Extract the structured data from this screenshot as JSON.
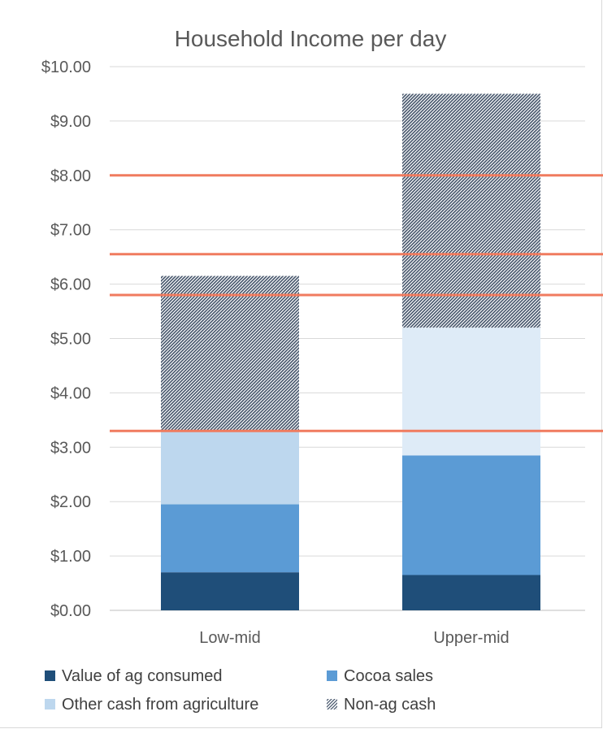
{
  "chart_data": {
    "type": "bar",
    "stacked": true,
    "title": "Household Income per day",
    "categories": [
      "Low-mid",
      "Upper-mid"
    ],
    "series": [
      {
        "name": "Value of ag consumed",
        "values": [
          0.7,
          0.65
        ],
        "color": "#1f4e79",
        "pattern": "solid"
      },
      {
        "name": "Cocoa sales",
        "values": [
          1.25,
          2.2
        ],
        "color": "#5b9bd5",
        "pattern": "solid"
      },
      {
        "name": "Other cash from agriculture",
        "values": [
          1.35,
          2.35
        ],
        "color": "#bdd7ee",
        "pattern": "solid"
      },
      {
        "name": "Non-ag cash",
        "values": [
          2.85,
          4.3
        ],
        "color": "#44546a",
        "pattern": "hatched"
      }
    ],
    "segment_colors_by_category": {
      "Upper-mid": {
        "Other cash from agriculture": "#deebf7"
      }
    },
    "ylim": [
      0,
      10
    ],
    "yticks": [
      "$0.00",
      "$1.00",
      "$2.00",
      "$3.00",
      "$4.00",
      "$5.00",
      "$6.00",
      "$7.00",
      "$8.00",
      "$9.00",
      "$10.00"
    ],
    "reference_lines": [
      8.0,
      6.55,
      5.8,
      3.3
    ],
    "reference_line_color": "#f07b5f",
    "gridlines": true,
    "legend_position": "bottom"
  }
}
